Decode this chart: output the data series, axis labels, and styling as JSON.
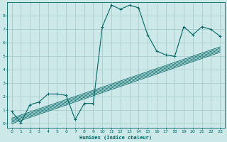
{
  "title": "",
  "xlabel": "Humidex (Indice chaleur)",
  "bg_color": "#cce8e8",
  "grid_color": "#aacccc",
  "line_color": "#006666",
  "xlim": [
    -0.5,
    23.5
  ],
  "ylim": [
    -0.3,
    9.0
  ],
  "xticks": [
    0,
    1,
    2,
    3,
    4,
    5,
    6,
    7,
    8,
    9,
    10,
    11,
    12,
    13,
    14,
    15,
    16,
    17,
    18,
    19,
    20,
    21,
    22,
    23
  ],
  "yticks": [
    0,
    1,
    2,
    3,
    4,
    5,
    6,
    7,
    8
  ],
  "main_curve": {
    "x": [
      0,
      1,
      2,
      3,
      4,
      5,
      6,
      7,
      8,
      9,
      10,
      11,
      12,
      13,
      14,
      15,
      16,
      17,
      18,
      19,
      20,
      21,
      22,
      23
    ],
    "y": [
      0.9,
      0.05,
      1.4,
      1.6,
      2.2,
      2.2,
      2.1,
      0.3,
      1.5,
      1.5,
      7.2,
      8.8,
      8.5,
      8.8,
      8.6,
      6.6,
      5.4,
      5.1,
      5.0,
      7.2,
      6.6,
      7.2,
      7.0,
      6.5
    ]
  },
  "ref_lines": [
    {
      "x": [
        0,
        23
      ],
      "y": [
        0.0,
        5.3
      ]
    },
    {
      "x": [
        0,
        23
      ],
      "y": [
        0.1,
        5.4
      ]
    },
    {
      "x": [
        0,
        23
      ],
      "y": [
        0.2,
        5.5
      ]
    },
    {
      "x": [
        0,
        23
      ],
      "y": [
        0.3,
        5.6
      ]
    },
    {
      "x": [
        0,
        23
      ],
      "y": [
        0.4,
        5.7
      ]
    }
  ]
}
